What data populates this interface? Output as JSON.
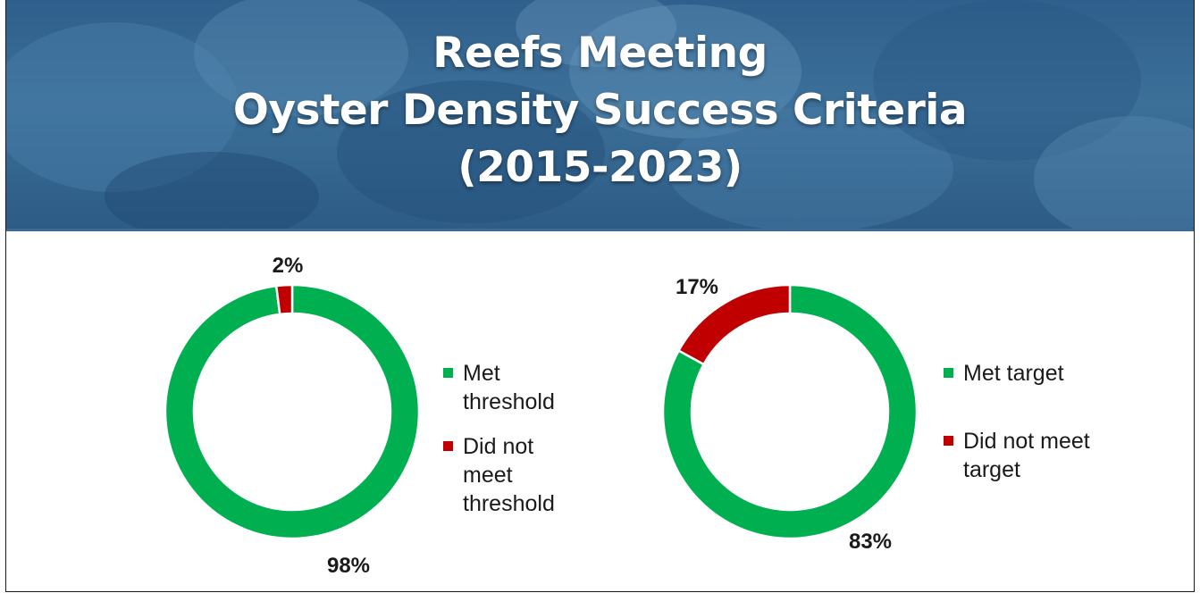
{
  "header": {
    "title_lines": [
      "Reefs Meeting",
      "Oyster Density Success Criteria",
      "(2015-2023)"
    ]
  },
  "colors": {
    "met": "#00b050",
    "not_met": "#c00000",
    "banner": "#2f5f8c"
  },
  "chart_data": [
    {
      "type": "pie",
      "variant": "donut",
      "categories": [
        "Met threshold",
        "Did not meet threshold"
      ],
      "values": [
        98,
        2
      ],
      "value_labels": [
        "98%",
        "2%"
      ],
      "legend": {
        "position": "right"
      }
    },
    {
      "type": "pie",
      "variant": "donut",
      "categories": [
        "Met target",
        "Did not meet target"
      ],
      "values": [
        83,
        17
      ],
      "value_labels": [
        "83%",
        "17%"
      ],
      "legend": {
        "position": "right"
      }
    }
  ]
}
